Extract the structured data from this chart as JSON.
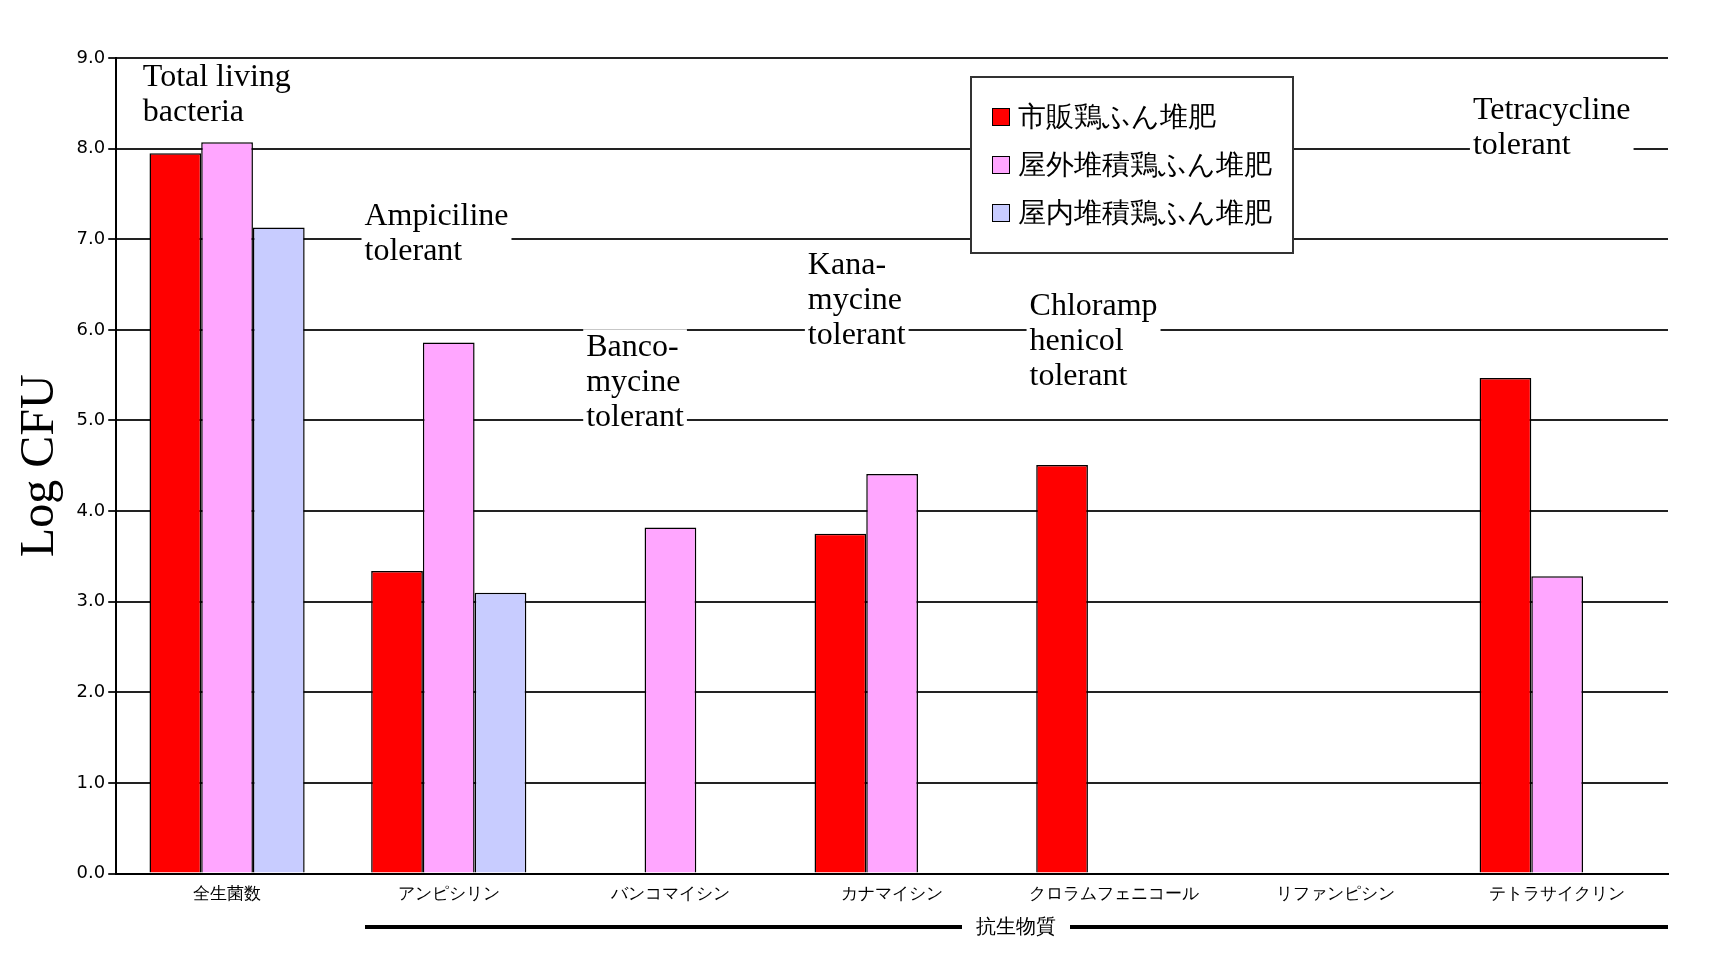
{
  "chart_data": {
    "type": "bar",
    "categories": [
      "全生菌数",
      "アンピシリン",
      "バンコマイシン",
      "カナマイシン",
      "クロラムフェニコール",
      "リファンピシン",
      "テトラサイクリン"
    ],
    "series": [
      {
        "name": "市販鶏ふん堆肥",
        "color": "#ff0000",
        "values": [
          7.95,
          3.34,
          null,
          3.75,
          4.51,
          null,
          5.47
        ]
      },
      {
        "name": "屋外堆積鶏ふん堆肥",
        "color": "#ffa6ff",
        "values": [
          8.07,
          5.86,
          3.82,
          4.41,
          null,
          null,
          3.28
        ]
      },
      {
        "name": "屋内堆積鶏ふん堆肥",
        "color": "#c8ccff",
        "values": [
          7.13,
          3.1,
          null,
          null,
          null,
          null,
          null
        ]
      }
    ],
    "xlabel": "抗生物質",
    "ylabel": "Log CFU",
    "ylim": [
      0,
      9
    ],
    "yticks": [
      {
        "value": 0,
        "label": "0.0"
      },
      {
        "value": 1,
        "label": "1.0"
      },
      {
        "value": 2,
        "label": "2.0"
      },
      {
        "value": 3,
        "label": "3.0"
      },
      {
        "value": 4,
        "label": "4.0"
      },
      {
        "value": 5,
        "label": "5.0"
      },
      {
        "value": 6,
        "label": "6.0"
      },
      {
        "value": 7,
        "label": "7.0"
      },
      {
        "value": 8,
        "label": "8.0"
      },
      {
        "value": 9,
        "label": "9.0"
      }
    ],
    "grid": "y",
    "legend": "top",
    "annotations": [
      "Total living\nbacteria",
      "Ampiciline\ntolerant",
      "Banco-\nmycine\ntolerant",
      "Kana-\nmycine\ntolerant",
      "Chloramp\nhenicol\ntolerant",
      "Tetracycline\ntolerant"
    ]
  }
}
